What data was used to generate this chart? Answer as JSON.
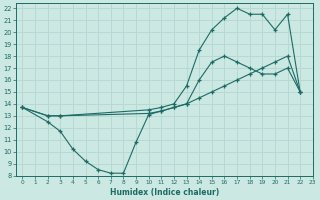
{
  "xlabel": "Humidex (Indice chaleur)",
  "bg_color": "#cbe8e3",
  "grid_color": "#b8d8d3",
  "line_color": "#1e6b65",
  "xlim": [
    -0.5,
    23
  ],
  "ylim": [
    8,
    22.4
  ],
  "xticks": [
    0,
    1,
    2,
    3,
    4,
    5,
    6,
    7,
    8,
    9,
    10,
    11,
    12,
    13,
    14,
    15,
    16,
    17,
    18,
    19,
    20,
    21,
    22,
    23
  ],
  "yticks": [
    8,
    9,
    10,
    11,
    12,
    13,
    14,
    15,
    16,
    17,
    18,
    19,
    20,
    21,
    22
  ],
  "curve1_x": [
    0,
    2,
    3,
    4,
    5,
    6,
    7,
    8,
    9,
    10,
    11,
    12,
    13,
    14,
    15,
    16,
    17,
    18,
    19,
    20,
    21,
    22
  ],
  "curve1_y": [
    13.7,
    12.5,
    11.7,
    10.2,
    9.2,
    8.5,
    8.2,
    8.2,
    10.8,
    13.1,
    13.4,
    13.7,
    14.0,
    16.0,
    17.5,
    18.0,
    17.5,
    17.0,
    16.5,
    16.5,
    17.0,
    15.0
  ],
  "curve2_x": [
    0,
    2,
    3,
    10,
    11,
    12,
    13,
    14,
    15,
    16,
    17,
    18,
    19,
    20,
    21,
    22
  ],
  "curve2_y": [
    13.7,
    13.0,
    13.0,
    13.5,
    13.7,
    14.0,
    15.5,
    18.5,
    20.2,
    21.2,
    22.0,
    21.5,
    21.5,
    20.2,
    21.5,
    15.0
  ],
  "curve3_x": [
    0,
    2,
    3,
    10,
    11,
    12,
    13,
    14,
    15,
    16,
    17,
    18,
    19,
    20,
    21,
    22
  ],
  "curve3_y": [
    13.7,
    13.0,
    13.0,
    13.2,
    13.4,
    13.7,
    14.0,
    14.5,
    15.0,
    15.5,
    16.0,
    16.5,
    17.0,
    17.5,
    18.0,
    15.0
  ]
}
